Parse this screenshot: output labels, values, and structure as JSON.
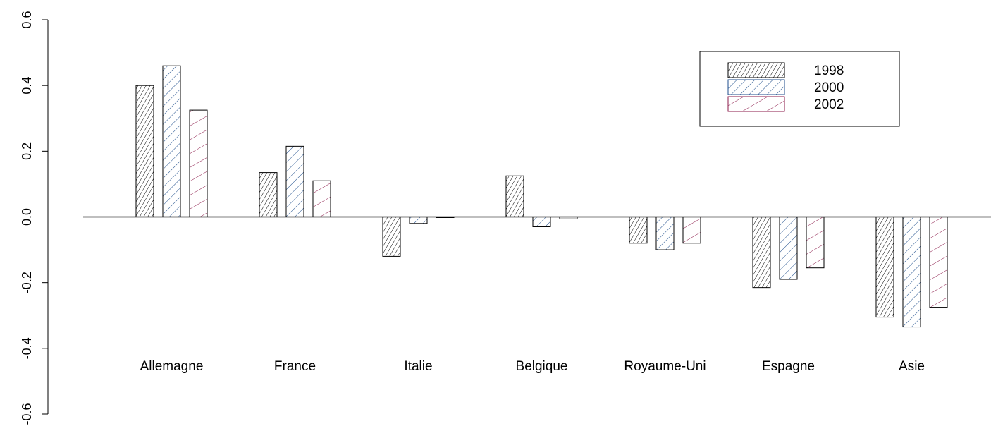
{
  "chart_data": {
    "type": "bar",
    "title": "",
    "xlabel": "",
    "ylabel": "",
    "categories": [
      "Allemagne",
      "France",
      "Italie",
      "Belgique",
      "Royaume-Uni",
      "Espagne",
      "Asie"
    ],
    "series": [
      {
        "name": "1998",
        "color": "#000000",
        "hatch_angle": 60,
        "hatch_density": "dense",
        "values": [
          0.4,
          0.135,
          -0.12,
          0.125,
          -0.08,
          -0.215,
          -0.305
        ]
      },
      {
        "name": "2000",
        "color": "#1f4e8c",
        "hatch_angle": 45,
        "hatch_density": "medium",
        "values": [
          0.46,
          0.215,
          -0.02,
          -0.03,
          -0.1,
          -0.19,
          -0.335
        ]
      },
      {
        "name": "2002",
        "color": "#8b1a4a",
        "hatch_angle": 30,
        "hatch_density": "sparse",
        "values": [
          0.325,
          0.11,
          -0.002,
          -0.006,
          -0.08,
          -0.155,
          -0.275
        ]
      }
    ],
    "ylim": [
      -0.6,
      0.6
    ],
    "yticks": [
      "-0.6",
      "-0.4",
      "-0.2",
      "0.0",
      "0.2",
      "0.4",
      "0.6"
    ],
    "zero_line": true,
    "grid": false,
    "legend_position": "top-right"
  }
}
